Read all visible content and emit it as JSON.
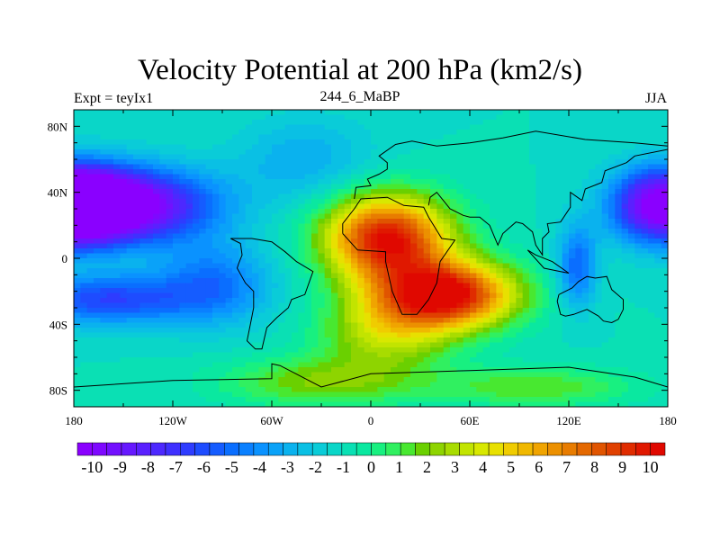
{
  "title": "Velocity Potential at 200 hPa (km2/s)",
  "left_string": "Expt = teyIx1",
  "center_string": "244_6_MaBP",
  "right_string": "JJA",
  "chart_data": {
    "type": "heatmap",
    "variable": "velocity potential",
    "level": "200 hPa",
    "units": "km2/s",
    "x": {
      "ticks": [
        -180,
        -120,
        -60,
        0,
        60,
        120,
        180
      ],
      "tick_labels": [
        "180",
        "120W",
        "60W",
        "0",
        "60E",
        "120E",
        "180"
      ],
      "range": [
        -180,
        180
      ]
    },
    "y": {
      "ticks": [
        80,
        40,
        0,
        -40,
        -80
      ],
      "tick_labels": [
        "80N",
        "40N",
        "0",
        "40S",
        "80S"
      ],
      "range": [
        -90,
        90
      ]
    },
    "colorbar": {
      "levels": [
        -10,
        -9.5,
        -9,
        -8.5,
        -8,
        -7.5,
        -7,
        -6.5,
        -6,
        -5.5,
        -5,
        -4.5,
        -4,
        -3.5,
        -3,
        -2.5,
        -2,
        -1.5,
        -1,
        -0.5,
        0,
        0.5,
        1,
        1.5,
        2,
        2.5,
        3,
        3.5,
        4,
        4.5,
        5,
        5.5,
        6,
        6.5,
        7,
        7.5,
        8,
        8.5,
        9,
        9.5,
        10
      ],
      "labels": [
        "-10",
        "-9",
        "-8",
        "-7",
        "-6",
        "-5",
        "-4",
        "-3",
        "-2",
        "-1",
        "0",
        "1",
        "2",
        "3",
        "4",
        "5",
        "6",
        "7",
        "8",
        "9",
        "10"
      ],
      "colors": [
        "#8a00ff",
        "#7e08ff",
        "#7310ff",
        "#6618ff",
        "#5a20ff",
        "#4d28ff",
        "#3f30ff",
        "#2e3cff",
        "#1e4cff",
        "#155cff",
        "#0a6eff",
        "#0a80ff",
        "#0a92ff",
        "#0aa2f8",
        "#0ab2ee",
        "#0ac0e4",
        "#0accd8",
        "#0ad6c8",
        "#0ae0b4",
        "#0ae8a0",
        "#18f080",
        "#30f060",
        "#48e830",
        "#6ad000",
        "#8ed400",
        "#a8dc00",
        "#c2e400",
        "#d8e800",
        "#e8e000",
        "#f0cc00",
        "#f0b800",
        "#f0a400",
        "#ec9000",
        "#e87c00",
        "#e46800",
        "#e05400",
        "#e04000",
        "#e02c00",
        "#e01800",
        "#e00800"
      ]
    },
    "features": [
      {
        "type": "minimum",
        "lon": -150,
        "lat": 30,
        "value": -10
      },
      {
        "type": "minimum",
        "lon": 165,
        "lat": 30,
        "value": -10
      },
      {
        "type": "maximum",
        "lon": 20,
        "lat": 20,
        "value": 10
      },
      {
        "type": "maximum",
        "lon": 40,
        "lat": -25,
        "value": 10
      }
    ]
  }
}
